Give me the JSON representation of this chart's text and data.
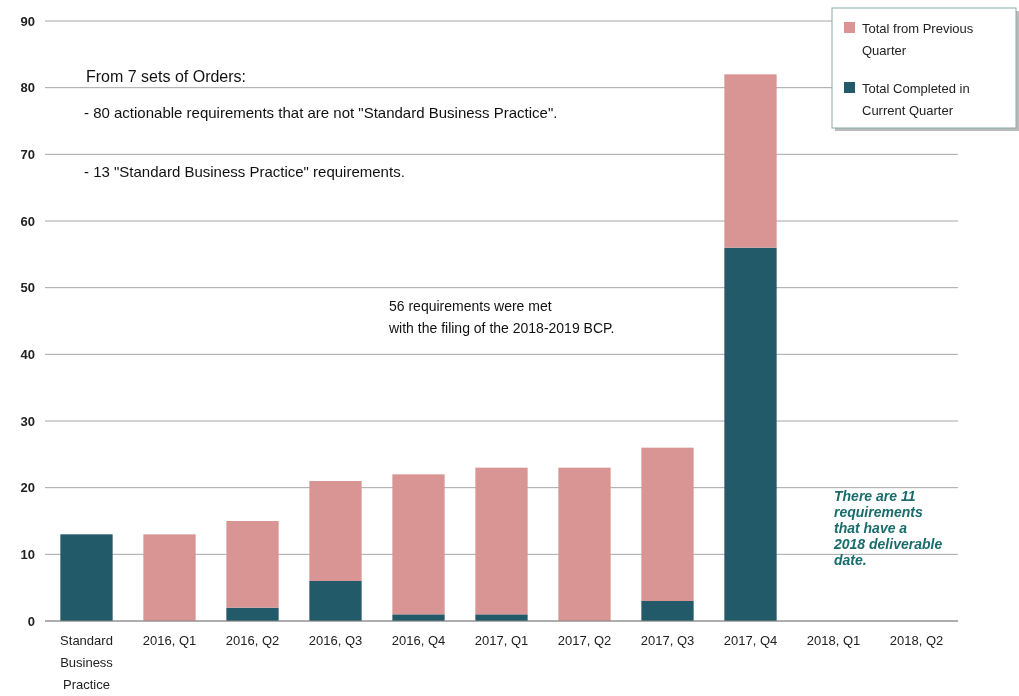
{
  "chart_data": {
    "type": "bar",
    "stacked": true,
    "categories": [
      "Standard Business Practice",
      "2016, Q1",
      "2016, Q2",
      "2016, Q3",
      "2016, Q4",
      "2017, Q1",
      "2017, Q2",
      "2017, Q3",
      "2017, Q4",
      "2018, Q1",
      "2018, Q2"
    ],
    "series": [
      {
        "name": "Total Completed in Current Quarter",
        "color": "#235a69",
        "values": [
          13,
          0,
          2,
          6,
          1,
          1,
          0,
          3,
          56,
          null,
          null
        ]
      },
      {
        "name": "Total from Previous Quarter",
        "color": "#d99594",
        "values": [
          0,
          13,
          13,
          15,
          21,
          22,
          23,
          23,
          26,
          null,
          null
        ]
      }
    ],
    "ylim": [
      0,
      90
    ],
    "yticks": [
      0,
      10,
      20,
      30,
      40,
      50,
      60,
      70,
      80,
      90
    ],
    "grid": "y",
    "legend": "top right",
    "annotations": [
      "From 7 sets of Orders:",
      "- 80 actionable requirements that are not \"Standard Business Practice\".",
      "- 13 \"Standard Business Practice\" requirements.",
      "56 requirements were met\nwith the filing of the 2018-2019 BCP.",
      "There are 11\nrequirements\nthat have a\n2018 deliverable\ndate."
    ]
  }
}
